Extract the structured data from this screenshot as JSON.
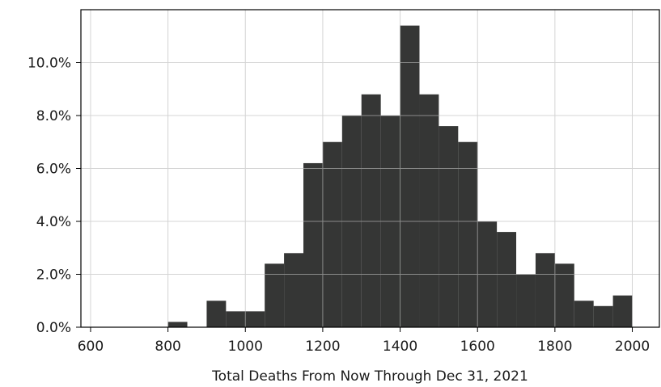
{
  "chart_data": {
    "type": "bar",
    "subtype": "histogram",
    "title": "",
    "xlabel": "Total Deaths From Now Through Dec 31, 2021",
    "ylabel": "",
    "xlim": [
      575,
      2070
    ],
    "ylim": [
      0,
      12.0
    ],
    "xticks": [
      600,
      800,
      1000,
      1200,
      1400,
      1600,
      1800,
      2000
    ],
    "yticks": [
      0,
      2,
      4,
      6,
      8,
      10
    ],
    "xtick_labels": [
      "600",
      "800",
      "1000",
      "1200",
      "1400",
      "1600",
      "1800",
      "2000"
    ],
    "ytick_labels": [
      "0.0%",
      "2.0%",
      "4.0%",
      "6.0%",
      "8.0%",
      "10.0%"
    ],
    "y_unit": "percent",
    "grid": true,
    "bar_color": "#353635",
    "bin_width": 50,
    "bins": [
      {
        "x0": 800,
        "x1": 850,
        "value": 0.2
      },
      {
        "x0": 900,
        "x1": 950,
        "value": 1.0
      },
      {
        "x0": 950,
        "x1": 1000,
        "value": 0.6
      },
      {
        "x0": 1000,
        "x1": 1050,
        "value": 0.6
      },
      {
        "x0": 1050,
        "x1": 1100,
        "value": 2.4
      },
      {
        "x0": 1100,
        "x1": 1150,
        "value": 2.8
      },
      {
        "x0": 1150,
        "x1": 1200,
        "value": 6.2
      },
      {
        "x0": 1200,
        "x1": 1250,
        "value": 7.0
      },
      {
        "x0": 1250,
        "x1": 1300,
        "value": 8.0
      },
      {
        "x0": 1300,
        "x1": 1350,
        "value": 8.8
      },
      {
        "x0": 1350,
        "x1": 1400,
        "value": 8.0
      },
      {
        "x0": 1400,
        "x1": 1450,
        "value": 11.4
      },
      {
        "x0": 1450,
        "x1": 1500,
        "value": 8.8
      },
      {
        "x0": 1500,
        "x1": 1550,
        "value": 7.6
      },
      {
        "x0": 1550,
        "x1": 1600,
        "value": 7.0
      },
      {
        "x0": 1600,
        "x1": 1650,
        "value": 4.0
      },
      {
        "x0": 1650,
        "x1": 1700,
        "value": 3.6
      },
      {
        "x0": 1700,
        "x1": 1750,
        "value": 2.0
      },
      {
        "x0": 1750,
        "x1": 1800,
        "value": 2.8
      },
      {
        "x0": 1800,
        "x1": 1850,
        "value": 2.4
      },
      {
        "x0": 1850,
        "x1": 1900,
        "value": 1.0
      },
      {
        "x0": 1900,
        "x1": 1950,
        "value": 0.8
      },
      {
        "x0": 1950,
        "x1": 2000,
        "value": 1.2
      }
    ]
  }
}
